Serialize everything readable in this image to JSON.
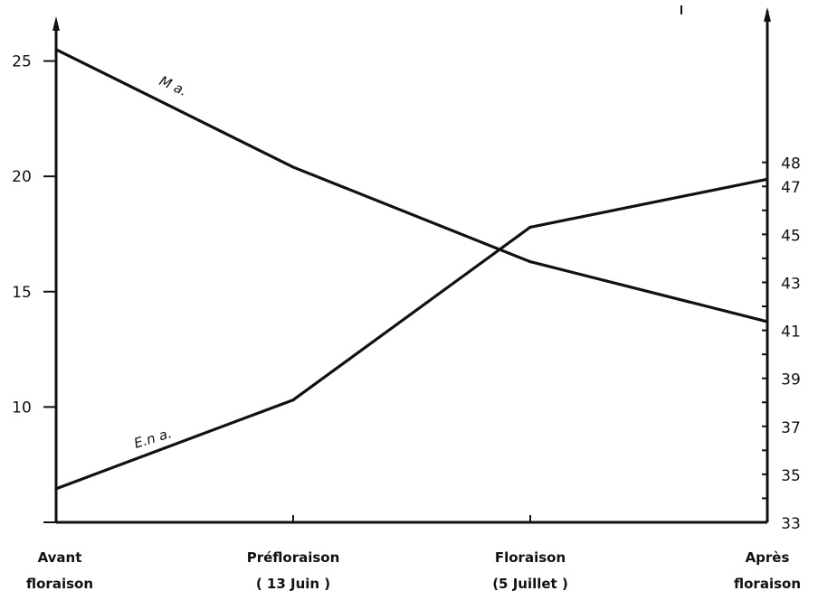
{
  "chart_data": {
    "type": "line",
    "categories": [
      [
        "Avant",
        "floraison"
      ],
      [
        "Préfloraison",
        "( 13 Juin )"
      ],
      [
        "Floraison",
        "(5 Juillet )"
      ],
      [
        "Après",
        "floraison"
      ]
    ],
    "left_axis": {
      "ylim": [
        5,
        26
      ],
      "tick_labels": [
        10,
        15,
        20,
        25
      ]
    },
    "right_axis": {
      "ylim": [
        33,
        47.8
      ],
      "tick_labels": [
        33,
        35,
        37,
        39,
        41,
        43,
        45,
        47,
        48
      ]
    },
    "series": [
      {
        "name": "M a.",
        "axis": "left",
        "values": [
          25.5,
          20.4,
          16.3,
          13.7
        ]
      },
      {
        "name": "E.n a.",
        "axis": "right",
        "values": [
          34.4,
          38.1,
          45.3,
          47.3
        ]
      }
    ]
  }
}
